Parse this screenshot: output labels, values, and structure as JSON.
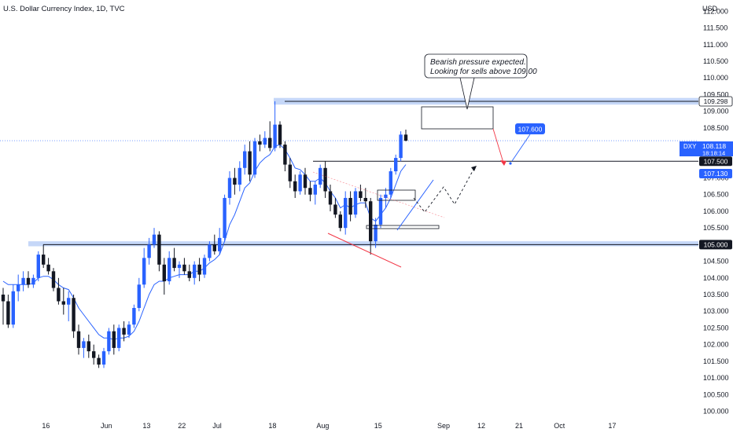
{
  "header": {
    "title": "U.S. Dollar Currency Index, 1D, TVC",
    "currency": "USD"
  },
  "annotation": {
    "line1": "Bearish pressure expected.",
    "line2": "Looking for sells above 109.00"
  },
  "callout_label": "107.600",
  "price_tags": [
    {
      "text": "109.298",
      "price": 109.298,
      "style": "outline"
    },
    {
      "text": "107.500",
      "price": 107.5,
      "style": "dark"
    },
    {
      "text": "107.130",
      "price": 107.13,
      "style": "blue"
    },
    {
      "text": "105.000",
      "price": 105.0,
      "style": "dark"
    }
  ],
  "current_tag": {
    "symbol": "DXY",
    "price_text": "108.118",
    "countdown": "18:18:14",
    "price": 108.118
  },
  "colors": {
    "bull": "#2962ff",
    "bear": "#131722",
    "ema": "#2962ff",
    "zone": "#bbd0f7",
    "bearish_arrow": "#f23645",
    "bullish_arrow": "#2962ff",
    "wedge_line": "#f23645"
  },
  "chart_data": {
    "type": "candlestick",
    "title": "U.S. Dollar Currency Index, 1D, TVC",
    "ylabel": "USD",
    "ylim": [
      99.8,
      112.15
    ],
    "y_ticks": [
      100.0,
      100.5,
      101.0,
      101.5,
      102.0,
      102.5,
      103.0,
      103.5,
      104.0,
      104.5,
      105.0,
      105.5,
      106.0,
      106.5,
      107.0,
      107.5,
      108.0,
      108.5,
      109.0,
      109.5,
      110.0,
      110.5,
      111.0,
      111.5,
      112.0
    ],
    "x_ticks": [
      "16",
      "Jun",
      "13",
      "22",
      "Jul",
      "18",
      "Aug",
      "15",
      "Sep",
      "12",
      "21",
      "Oct",
      "17"
    ],
    "x_tick_slots": [
      8.5,
      20.5,
      28.5,
      35.5,
      42.5,
      53.5,
      63.5,
      74.5,
      87.5,
      95,
      102.5,
      110.5,
      121
    ],
    "candles": [
      {
        "o": 103.5,
        "h": 103.7,
        "l": 102.6,
        "c": 103.3
      },
      {
        "o": 103.3,
        "h": 103.5,
        "l": 102.5,
        "c": 102.6
      },
      {
        "o": 102.6,
        "h": 103.8,
        "l": 102.5,
        "c": 103.6
      },
      {
        "o": 103.6,
        "h": 104.1,
        "l": 103.3,
        "c": 103.8
      },
      {
        "o": 103.8,
        "h": 104.2,
        "l": 103.6,
        "c": 104.0
      },
      {
        "o": 104.0,
        "h": 104.2,
        "l": 103.7,
        "c": 103.8
      },
      {
        "o": 103.8,
        "h": 104.1,
        "l": 103.7,
        "c": 104.0
      },
      {
        "o": 104.0,
        "h": 104.8,
        "l": 103.9,
        "c": 104.7
      },
      {
        "o": 104.7,
        "h": 105.0,
        "l": 104.3,
        "c": 104.4
      },
      {
        "o": 104.4,
        "h": 104.6,
        "l": 104.1,
        "c": 104.2
      },
      {
        "o": 104.2,
        "h": 104.3,
        "l": 103.6,
        "c": 103.7
      },
      {
        "o": 103.7,
        "h": 104.0,
        "l": 103.2,
        "c": 103.3
      },
      {
        "o": 103.3,
        "h": 103.7,
        "l": 102.9,
        "c": 103.2
      },
      {
        "o": 103.2,
        "h": 103.6,
        "l": 102.7,
        "c": 103.4
      },
      {
        "o": 103.4,
        "h": 103.5,
        "l": 102.2,
        "c": 102.4
      },
      {
        "o": 102.4,
        "h": 102.6,
        "l": 101.7,
        "c": 101.9
      },
      {
        "o": 101.9,
        "h": 102.2,
        "l": 101.6,
        "c": 102.1
      },
      {
        "o": 102.1,
        "h": 102.3,
        "l": 101.6,
        "c": 101.8
      },
      {
        "o": 101.8,
        "h": 102.0,
        "l": 101.4,
        "c": 101.6
      },
      {
        "o": 101.6,
        "h": 101.7,
        "l": 101.3,
        "c": 101.4
      },
      {
        "o": 101.4,
        "h": 101.9,
        "l": 101.3,
        "c": 101.8
      },
      {
        "o": 101.8,
        "h": 102.5,
        "l": 101.7,
        "c": 102.4
      },
      {
        "o": 102.4,
        "h": 102.6,
        "l": 101.7,
        "c": 101.9
      },
      {
        "o": 101.9,
        "h": 102.6,
        "l": 101.8,
        "c": 102.5
      },
      {
        "o": 102.5,
        "h": 102.7,
        "l": 102.1,
        "c": 102.3
      },
      {
        "o": 102.3,
        "h": 102.7,
        "l": 102.2,
        "c": 102.6
      },
      {
        "o": 102.6,
        "h": 103.2,
        "l": 102.5,
        "c": 103.1
      },
      {
        "o": 103.1,
        "h": 104.0,
        "l": 103.0,
        "c": 103.8
      },
      {
        "o": 103.8,
        "h": 104.9,
        "l": 103.7,
        "c": 104.6
      },
      {
        "o": 104.6,
        "h": 105.2,
        "l": 104.4,
        "c": 105.0
      },
      {
        "o": 105.0,
        "h": 105.5,
        "l": 104.9,
        "c": 105.3
      },
      {
        "o": 105.3,
        "h": 105.4,
        "l": 104.2,
        "c": 104.4
      },
      {
        "o": 104.4,
        "h": 104.6,
        "l": 103.5,
        "c": 103.9
      },
      {
        "o": 103.9,
        "h": 104.8,
        "l": 103.8,
        "c": 104.6
      },
      {
        "o": 104.6,
        "h": 104.9,
        "l": 104.2,
        "c": 104.3
      },
      {
        "o": 104.3,
        "h": 104.5,
        "l": 104.0,
        "c": 104.4
      },
      {
        "o": 104.4,
        "h": 104.6,
        "l": 104.1,
        "c": 104.2
      },
      {
        "o": 104.2,
        "h": 104.4,
        "l": 103.9,
        "c": 104.0
      },
      {
        "o": 104.0,
        "h": 104.5,
        "l": 103.8,
        "c": 104.4
      },
      {
        "o": 104.4,
        "h": 104.6,
        "l": 103.9,
        "c": 104.1
      },
      {
        "o": 104.1,
        "h": 104.7,
        "l": 104.0,
        "c": 104.6
      },
      {
        "o": 104.6,
        "h": 105.1,
        "l": 104.5,
        "c": 105.0
      },
      {
        "o": 105.0,
        "h": 105.3,
        "l": 104.7,
        "c": 104.8
      },
      {
        "o": 104.8,
        "h": 105.5,
        "l": 104.7,
        "c": 105.2
      },
      {
        "o": 105.2,
        "h": 106.5,
        "l": 105.1,
        "c": 106.4
      },
      {
        "o": 106.4,
        "h": 107.2,
        "l": 106.2,
        "c": 107.0
      },
      {
        "o": 107.0,
        "h": 107.3,
        "l": 106.5,
        "c": 106.8
      },
      {
        "o": 106.8,
        "h": 107.5,
        "l": 106.6,
        "c": 107.3
      },
      {
        "o": 107.3,
        "h": 108.0,
        "l": 107.1,
        "c": 107.8
      },
      {
        "o": 107.8,
        "h": 108.1,
        "l": 106.9,
        "c": 107.1
      },
      {
        "o": 107.1,
        "h": 108.2,
        "l": 107.0,
        "c": 108.1
      },
      {
        "o": 108.1,
        "h": 108.3,
        "l": 107.8,
        "c": 108.0
      },
      {
        "o": 108.0,
        "h": 108.4,
        "l": 107.9,
        "c": 108.2
      },
      {
        "o": 108.2,
        "h": 108.7,
        "l": 107.8,
        "c": 107.9
      },
      {
        "o": 107.9,
        "h": 109.3,
        "l": 107.8,
        "c": 108.6
      },
      {
        "o": 108.6,
        "h": 108.7,
        "l": 107.9,
        "c": 108.0
      },
      {
        "o": 108.0,
        "h": 108.1,
        "l": 107.2,
        "c": 107.4
      },
      {
        "o": 107.4,
        "h": 107.6,
        "l": 106.7,
        "c": 106.9
      },
      {
        "o": 106.9,
        "h": 107.1,
        "l": 106.4,
        "c": 106.6
      },
      {
        "o": 106.6,
        "h": 107.2,
        "l": 106.5,
        "c": 107.1
      },
      {
        "o": 107.1,
        "h": 107.3,
        "l": 106.5,
        "c": 106.7
      },
      {
        "o": 106.7,
        "h": 106.9,
        "l": 106.3,
        "c": 106.5
      },
      {
        "o": 106.5,
        "h": 106.9,
        "l": 106.2,
        "c": 106.8
      },
      {
        "o": 106.8,
        "h": 107.4,
        "l": 106.7,
        "c": 107.3
      },
      {
        "o": 107.3,
        "h": 107.5,
        "l": 106.4,
        "c": 106.6
      },
      {
        "o": 106.6,
        "h": 106.8,
        "l": 106.0,
        "c": 106.2
      },
      {
        "o": 106.2,
        "h": 106.4,
        "l": 105.8,
        "c": 105.9
      },
      {
        "o": 105.9,
        "h": 106.0,
        "l": 105.4,
        "c": 105.5
      },
      {
        "o": 105.5,
        "h": 106.6,
        "l": 105.3,
        "c": 106.4
      },
      {
        "o": 106.4,
        "h": 106.6,
        "l": 105.7,
        "c": 105.9
      },
      {
        "o": 105.9,
        "h": 106.7,
        "l": 105.8,
        "c": 106.6
      },
      {
        "o": 106.6,
        "h": 106.8,
        "l": 106.3,
        "c": 106.4
      },
      {
        "o": 106.4,
        "h": 106.7,
        "l": 106.1,
        "c": 106.3
      },
      {
        "o": 106.3,
        "h": 106.4,
        "l": 104.7,
        "c": 105.1
      },
      {
        "o": 105.1,
        "h": 105.8,
        "l": 104.9,
        "c": 105.6
      },
      {
        "o": 105.6,
        "h": 106.5,
        "l": 105.5,
        "c": 106.4
      },
      {
        "o": 106.4,
        "h": 106.7,
        "l": 106.1,
        "c": 106.5
      },
      {
        "o": 106.5,
        "h": 107.3,
        "l": 106.4,
        "c": 107.2
      },
      {
        "o": 107.2,
        "h": 107.7,
        "l": 107.1,
        "c": 107.6
      },
      {
        "o": 107.6,
        "h": 108.4,
        "l": 107.5,
        "c": 108.3
      },
      {
        "o": 108.3,
        "h": 108.45,
        "l": 108.1,
        "c": 108.118
      }
    ],
    "ema": [
      103.9,
      103.8,
      103.8,
      103.8,
      103.8,
      103.8,
      103.85,
      104.0,
      104.05,
      104.05,
      103.95,
      103.8,
      103.7,
      103.65,
      103.4,
      103.1,
      102.9,
      102.7,
      102.5,
      102.3,
      102.2,
      102.2,
      102.15,
      102.2,
      102.2,
      102.25,
      102.4,
      102.7,
      103.1,
      103.5,
      103.8,
      103.9,
      103.9,
      104.0,
      104.05,
      104.1,
      104.1,
      104.1,
      104.2,
      104.2,
      104.3,
      104.45,
      104.55,
      104.7,
      105.1,
      105.6,
      105.9,
      106.3,
      106.7,
      106.85,
      107.2,
      107.45,
      107.6,
      107.7,
      107.95,
      108.0,
      107.85,
      107.6,
      107.3,
      107.25,
      107.1,
      106.9,
      106.9,
      107.0,
      106.85,
      106.6,
      106.4,
      106.1,
      106.2,
      106.1,
      106.2,
      106.25,
      106.25,
      105.8,
      105.7,
      105.9,
      106.1,
      106.4,
      106.8,
      107.2,
      107.4
    ],
    "levels": {
      "resistance_zone": [
        109.2,
        109.4
      ],
      "support_zone": [
        104.95,
        105.1
      ],
      "line_107_500": 107.5
    }
  }
}
